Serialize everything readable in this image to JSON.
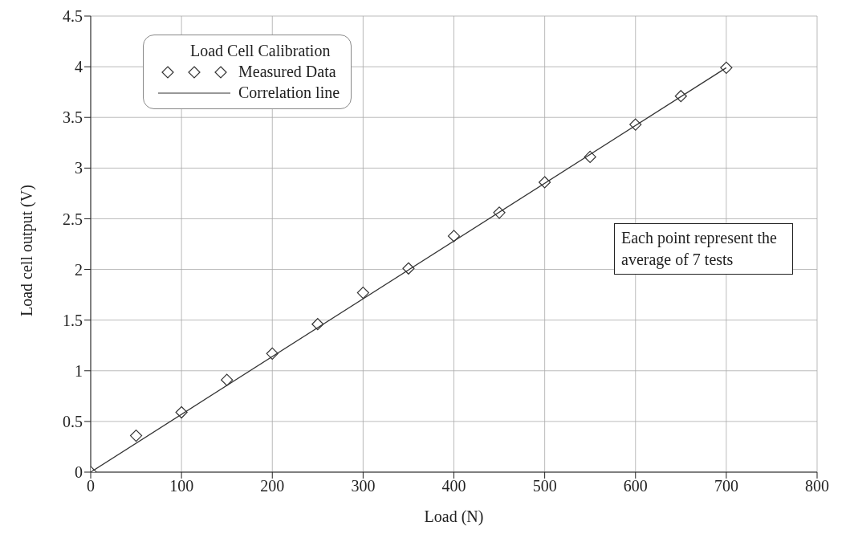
{
  "chart_data": {
    "type": "scatter",
    "xlabel": "Load (N)",
    "ylabel": "Load cell output (V)",
    "legend_title": "Load Cell Calibration",
    "legend": "top left",
    "grid": true,
    "marker": "diamond",
    "xlim": [
      0,
      800
    ],
    "xticks": [
      0,
      100,
      200,
      300,
      400,
      500,
      600,
      700,
      800
    ],
    "ylim": [
      0,
      4.5
    ],
    "yticks": [
      0,
      0.5,
      1,
      1.5,
      2,
      2.5,
      3,
      3.5,
      4,
      4.5
    ],
    "x": [
      0,
      50,
      100,
      150,
      200,
      250,
      300,
      350,
      400,
      450,
      500,
      550,
      600,
      650,
      700
    ],
    "series": [
      {
        "name": "Measured Data",
        "color": "#333333",
        "values": [
          0,
          0.36,
          0.59,
          0.91,
          1.17,
          1.46,
          1.77,
          2.01,
          2.33,
          2.56,
          2.86,
          3.11,
          3.43,
          3.71,
          3.99
        ]
      },
      {
        "name": "Correlation line",
        "type": "line",
        "color": "#333333",
        "marker": "none",
        "x": [
          0,
          700
        ],
        "values": [
          0,
          3.99
        ]
      }
    ],
    "annotations": [
      "Each point represent the average of 7 tests"
    ]
  }
}
